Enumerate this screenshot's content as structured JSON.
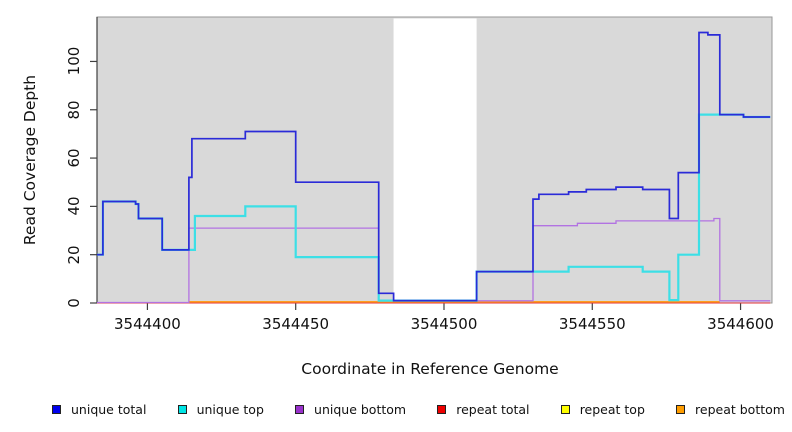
{
  "figure_name": "read-coverage-step-plot",
  "chart_data": {
    "type": "line",
    "subtype": "step",
    "title": "",
    "xlabel": "Coordinate in Reference Genome",
    "ylabel": "Read Coverage Depth",
    "x_ticks": [
      3544400,
      3544450,
      3544500,
      3544550,
      3544600
    ],
    "y_ticks": [
      0,
      20,
      40,
      60,
      80,
      100
    ],
    "xlim": [
      3544383,
      3544610.6
    ],
    "ylim": [
      0,
      118.4
    ],
    "grid": "off",
    "panel_background": "#d9d9d9",
    "outer_background": "#ffffff",
    "frame_color": "#979797",
    "axis_color": "#3f3f3f",
    "gap_region": {
      "start": 3544483,
      "end": 3544511,
      "color": "#ffffff"
    },
    "legend_position": "bottom",
    "series": [
      {
        "key": "repeat-top",
        "name": "repeat top",
        "color": "#ffe94e",
        "width": 1,
        "end": 3544610,
        "steps": [
          [
            3544383,
            0
          ]
        ]
      },
      {
        "key": "repeat-total",
        "name": "repeat total",
        "color": "#e0303a",
        "width": 1,
        "end": 3544610,
        "steps": [
          [
            3544383,
            0
          ]
        ]
      },
      {
        "key": "repeat-bottom",
        "name": "repeat bottom",
        "color": "#ff9d1e",
        "width": 1.6,
        "end": 3544593,
        "steps": [
          [
            3544414,
            0.5
          ]
        ]
      },
      {
        "key": "unique-bottom",
        "name": "unique bottom",
        "color": "#b273e2",
        "width": 1.3,
        "end": 3544610,
        "steps": [
          [
            3544383,
            0.2
          ],
          [
            3544414,
            31
          ],
          [
            3544478,
            0.9
          ],
          [
            3544530,
            32
          ],
          [
            3544545,
            33
          ],
          [
            3544558,
            34
          ],
          [
            3544591,
            35
          ],
          [
            3544593,
            0.9
          ]
        ]
      },
      {
        "key": "unique-top",
        "name": "unique top",
        "color": "#3cdfe6",
        "width": 2.2,
        "end": 3544610,
        "steps": [
          [
            3544383,
            20
          ],
          [
            3544385,
            42
          ],
          [
            3544396,
            41
          ],
          [
            3544397,
            35
          ],
          [
            3544405,
            22
          ],
          [
            3544416,
            36
          ],
          [
            3544433,
            40
          ],
          [
            3544450,
            19
          ],
          [
            3544478,
            1
          ],
          [
            3544511,
            13
          ],
          [
            3544542,
            15
          ],
          [
            3544567,
            13
          ],
          [
            3544576,
            1.2
          ],
          [
            3544579,
            20
          ],
          [
            3544586,
            78
          ],
          [
            3544601,
            77
          ]
        ]
      },
      {
        "key": "unique-total",
        "name": "unique total",
        "color": "#2b2bd8",
        "width": 1.7,
        "end": 3544610,
        "steps": [
          [
            3544383,
            20
          ],
          [
            3544385,
            42
          ],
          [
            3544396,
            41
          ],
          [
            3544397,
            35
          ],
          [
            3544405,
            22
          ],
          [
            3544414,
            52
          ],
          [
            3544415,
            68
          ],
          [
            3544433,
            71
          ],
          [
            3544450,
            50
          ],
          [
            3544478,
            4
          ],
          [
            3544483,
            1
          ],
          [
            3544511,
            13
          ],
          [
            3544530,
            43
          ],
          [
            3544532,
            45
          ],
          [
            3544542,
            46
          ],
          [
            3544548,
            47
          ],
          [
            3544558,
            48
          ],
          [
            3544567,
            47
          ],
          [
            3544576,
            35
          ],
          [
            3544579,
            54
          ],
          [
            3544586,
            112
          ],
          [
            3544589,
            111
          ],
          [
            3544593,
            78
          ],
          [
            3544601,
            77
          ]
        ]
      }
    ]
  },
  "legend": {
    "items": [
      {
        "label": "unique total",
        "color": "#0000ee"
      },
      {
        "label": "unique top",
        "color": "#00e5e5"
      },
      {
        "label": "unique bottom",
        "color": "#9932cc"
      },
      {
        "label": "repeat total",
        "color": "#ee0000"
      },
      {
        "label": "repeat top",
        "color": "#ffff00"
      },
      {
        "label": "repeat bottom",
        "color": "#ff9d00"
      }
    ]
  }
}
